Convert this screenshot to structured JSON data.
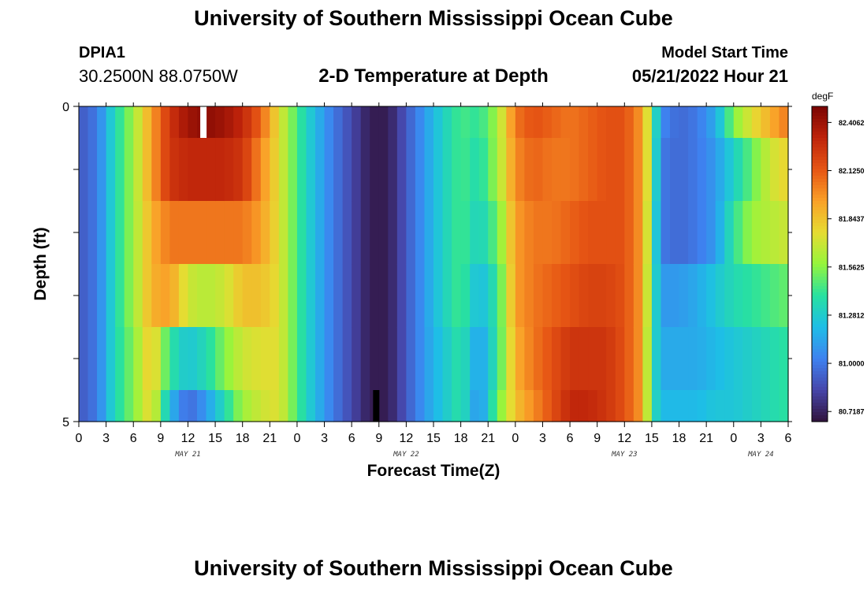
{
  "header": {
    "title": "University of Southern Mississippi Ocean Cube",
    "station_id": "DPIA1",
    "station_coords": "30.2500N  88.0750W",
    "subtitle": "2-D Temperature at Depth",
    "model_start_label": "Model Start Time",
    "model_start_value": "05/21/2022 Hour 21"
  },
  "footer": {
    "title": "University of Southern Mississippi Ocean Cube"
  },
  "chart_data": {
    "type": "heatmap",
    "title": "2-D Temperature at Depth",
    "xlabel": "Forecast Time(Z)",
    "ylabel": "Depth (ft)",
    "x_unit": "forecast hour from 2022-05-21 00Z",
    "xlim": [
      0,
      78
    ],
    "ylim": [
      0,
      5
    ],
    "y_ticks": [
      "0",
      "5"
    ],
    "x_tick_labels": [
      "0",
      "3",
      "6",
      "9",
      "12",
      "15",
      "18",
      "21",
      "0",
      "3",
      "6",
      "9",
      "12",
      "15",
      "18",
      "21",
      "0",
      "3",
      "6",
      "9",
      "12",
      "15",
      "18",
      "21",
      "0",
      "3",
      "6"
    ],
    "date_labels": [
      {
        "text": "MAY 21",
        "hour": 12
      },
      {
        "text": "MAY 22",
        "hour": 36
      },
      {
        "text": "MAY 23",
        "hour": 60
      },
      {
        "text": "MAY 24",
        "hour": 75
      }
    ],
    "colorbar": {
      "unit": "degF",
      "min": 80.66,
      "max": 82.5,
      "ticks": [
        "82.4062",
        "82.1250",
        "81.8437",
        "81.5625",
        "81.2812",
        "81.0000",
        "80.7187"
      ],
      "tick_values": [
        82.40625,
        82.125,
        81.84375,
        81.5625,
        81.28125,
        81.0,
        80.71875
      ]
    },
    "missing_markers": [
      {
        "hour": 13.7,
        "depth_from": 0,
        "depth_to": 0.5,
        "color": "#ffffff"
      },
      {
        "hour": 32.7,
        "depth_from": 4.5,
        "depth_to": 5.0,
        "color": "#000000"
      }
    ],
    "keyframes": [
      {
        "hour": 0,
        "temps": [
          80.9,
          80.9,
          80.9,
          80.9,
          80.9,
          80.9
        ]
      },
      {
        "hour": 2,
        "temps": [
          81.0,
          81.0,
          81.0,
          81.0,
          81.0,
          81.0
        ]
      },
      {
        "hour": 4,
        "temps": [
          81.35,
          81.35,
          81.35,
          81.35,
          81.35,
          81.35
        ]
      },
      {
        "hour": 6,
        "temps": [
          81.6,
          81.6,
          81.6,
          81.6,
          81.55,
          81.55
        ]
      },
      {
        "hour": 8,
        "temps": [
          81.95,
          81.95,
          81.9,
          81.9,
          81.85,
          81.8
        ]
      },
      {
        "hour": 10,
        "temps": [
          82.25,
          82.25,
          82.05,
          81.95,
          81.4,
          81.2
        ]
      },
      {
        "hour": 12,
        "temps": [
          82.4,
          82.3,
          82.05,
          81.7,
          81.25,
          80.95
        ]
      },
      {
        "hour": 14,
        "temps": [
          82.45,
          82.3,
          82.05,
          81.65,
          81.35,
          81.1
        ]
      },
      {
        "hour": 16,
        "temps": [
          82.4,
          82.3,
          82.05,
          81.7,
          81.55,
          81.35
        ]
      },
      {
        "hour": 18,
        "temps": [
          82.3,
          82.25,
          82.05,
          81.85,
          81.7,
          81.6
        ]
      },
      {
        "hour": 20,
        "temps": [
          82.1,
          82.0,
          81.95,
          81.85,
          81.75,
          81.7
        ]
      },
      {
        "hour": 22,
        "temps": [
          81.75,
          81.75,
          81.75,
          81.75,
          81.75,
          81.75
        ]
      },
      {
        "hour": 24,
        "temps": [
          81.45,
          81.45,
          81.45,
          81.45,
          81.45,
          81.45
        ]
      },
      {
        "hour": 26,
        "temps": [
          81.2,
          81.2,
          81.2,
          81.2,
          81.2,
          81.2
        ]
      },
      {
        "hour": 28,
        "temps": [
          81.0,
          81.0,
          81.0,
          81.0,
          81.0,
          81.0
        ]
      },
      {
        "hour": 30,
        "temps": [
          80.85,
          80.85,
          80.85,
          80.85,
          80.85,
          80.85
        ]
      },
      {
        "hour": 32,
        "temps": [
          80.7,
          80.7,
          80.7,
          80.7,
          80.7,
          80.7
        ]
      },
      {
        "hour": 34,
        "temps": [
          80.7,
          80.7,
          80.7,
          80.7,
          80.7,
          80.7
        ]
      },
      {
        "hour": 36,
        "temps": [
          80.9,
          80.9,
          80.9,
          80.9,
          80.9,
          80.9
        ]
      },
      {
        "hour": 38,
        "temps": [
          81.1,
          81.1,
          81.1,
          81.1,
          81.1,
          81.1
        ]
      },
      {
        "hour": 40,
        "temps": [
          81.3,
          81.3,
          81.3,
          81.3,
          81.25,
          81.25
        ]
      },
      {
        "hour": 42,
        "temps": [
          81.45,
          81.45,
          81.45,
          81.45,
          81.4,
          81.4
        ]
      },
      {
        "hour": 44,
        "temps": [
          81.4,
          81.35,
          81.3,
          81.2,
          81.1,
          81.05
        ]
      },
      {
        "hour": 46,
        "temps": [
          81.6,
          81.6,
          81.5,
          81.4,
          81.4,
          81.5
        ]
      },
      {
        "hour": 48,
        "temps": [
          82.05,
          82.0,
          81.95,
          81.95,
          81.9,
          81.85
        ]
      },
      {
        "hour": 50,
        "temps": [
          82.15,
          82.1,
          82.05,
          82.05,
          82.05,
          82.0
        ]
      },
      {
        "hour": 52,
        "temps": [
          82.1,
          82.05,
          82.05,
          82.1,
          82.15,
          82.15
        ]
      },
      {
        "hour": 54,
        "temps": [
          82.05,
          82.05,
          82.1,
          82.15,
          82.25,
          82.3
        ]
      },
      {
        "hour": 56,
        "temps": [
          82.1,
          82.1,
          82.15,
          82.2,
          82.25,
          82.3
        ]
      },
      {
        "hour": 58,
        "temps": [
          82.15,
          82.15,
          82.15,
          82.2,
          82.25,
          82.25
        ]
      },
      {
        "hour": 60,
        "temps": [
          82.15,
          82.15,
          82.15,
          82.15,
          82.15,
          82.15
        ]
      },
      {
        "hour": 62,
        "temps": [
          81.95,
          81.95,
          81.95,
          81.95,
          81.95,
          81.95
        ]
      },
      {
        "hour": 63,
        "temps": [
          81.55,
          81.55,
          81.5,
          81.45,
          81.4,
          81.4
        ]
      },
      {
        "hour": 64,
        "temps": [
          81.05,
          81.0,
          81.0,
          81.1,
          81.15,
          81.2
        ]
      },
      {
        "hour": 66,
        "temps": [
          80.95,
          80.95,
          80.95,
          81.1,
          81.15,
          81.2
        ]
      },
      {
        "hour": 68,
        "temps": [
          81.0,
          81.0,
          81.0,
          81.15,
          81.15,
          81.2
        ]
      },
      {
        "hour": 70,
        "temps": [
          81.15,
          81.1,
          81.1,
          81.25,
          81.2,
          81.25
        ]
      },
      {
        "hour": 72,
        "temps": [
          81.55,
          81.3,
          81.4,
          81.35,
          81.25,
          81.25
        ]
      },
      {
        "hour": 74,
        "temps": [
          81.75,
          81.5,
          81.6,
          81.4,
          81.3,
          81.3
        ]
      },
      {
        "hour": 76,
        "temps": [
          81.9,
          81.7,
          81.65,
          81.45,
          81.35,
          81.35
        ]
      },
      {
        "hour": 78,
        "temps": [
          82.05,
          81.8,
          81.7,
          81.5,
          81.4,
          81.4
        ]
      }
    ]
  }
}
